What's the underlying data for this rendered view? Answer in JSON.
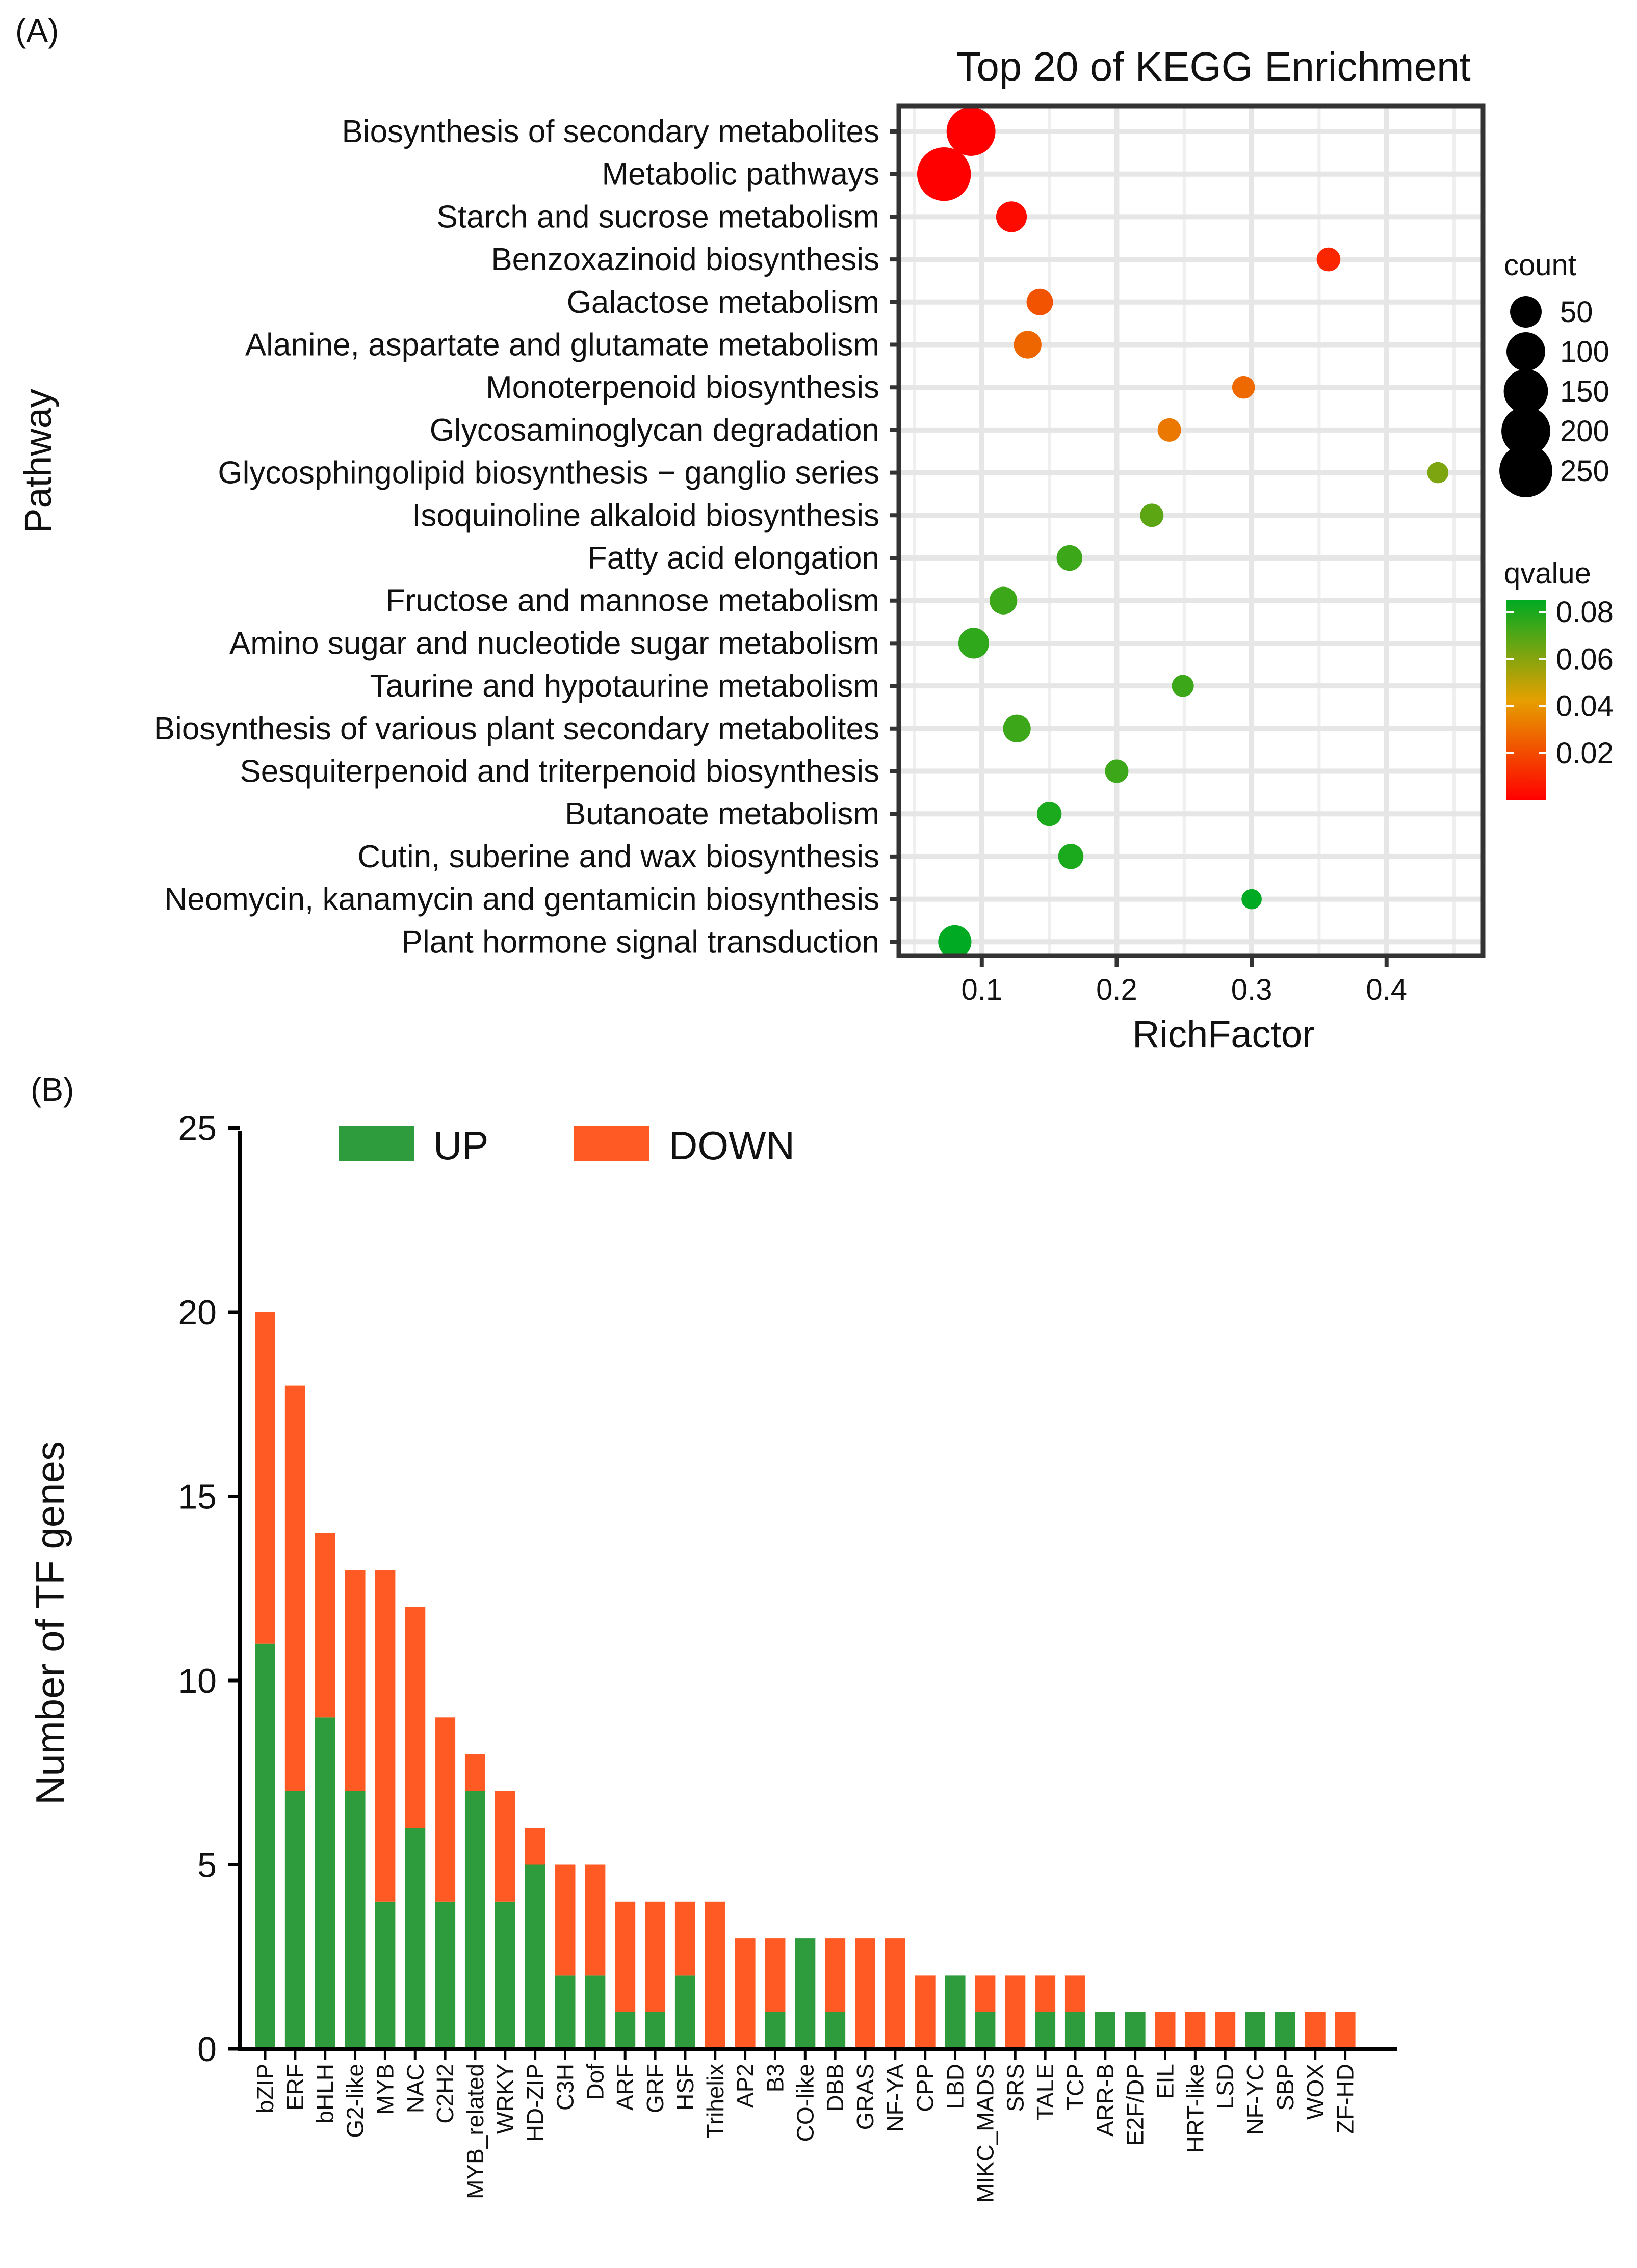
{
  "panel_labels": {
    "a": "(A)",
    "b": "(B)"
  },
  "chart_data": [
    {
      "type": "scatter",
      "title": "Top 20 of KEGG Enrichment",
      "xlabel": "RichFactor",
      "ylabel": "Pathway",
      "xlim": [
        0.04,
        0.47
      ],
      "xticks": [
        0.1,
        0.2,
        0.3,
        0.4
      ],
      "xtick_labels": [
        "0.1",
        "0.2",
        "0.3",
        "0.4"
      ],
      "grid": true,
      "size_legend": {
        "title": "count",
        "values": [
          50,
          100,
          150,
          200,
          250
        ],
        "labels": [
          "50",
          "100",
          "150",
          "200",
          "250"
        ]
      },
      "color_legend": {
        "title": "qvalue",
        "min": 0,
        "max": 0.085,
        "ticks": [
          0.02,
          0.04,
          0.06,
          0.08
        ],
        "tick_labels": [
          "0.02",
          "0.04",
          "0.06",
          "0.08"
        ],
        "low_color": "#ff0000",
        "mid_color": "#e5a000",
        "high_color": "#00aa22"
      },
      "points": [
        {
          "pathway": "Biosynthesis of secondary metabolites",
          "rich_factor": 0.092,
          "count": 200,
          "qvalue": 0.0
        },
        {
          "pathway": "Metabolic pathways",
          "rich_factor": 0.072,
          "count": 260,
          "qvalue": 0.0
        },
        {
          "pathway": "Starch and sucrose metabolism",
          "rich_factor": 0.122,
          "count": 45,
          "qvalue": 0.003
        },
        {
          "pathway": "Benzoxazinoid biosynthesis",
          "rich_factor": 0.357,
          "count": 15,
          "qvalue": 0.01
        },
        {
          "pathway": "Galactose metabolism",
          "rich_factor": 0.143,
          "count": 25,
          "qvalue": 0.022
        },
        {
          "pathway": "Alanine, aspartate and glutamate metabolism",
          "rich_factor": 0.134,
          "count": 30,
          "qvalue": 0.027
        },
        {
          "pathway": "Monoterpenoid biosynthesis",
          "rich_factor": 0.294,
          "count": 12,
          "qvalue": 0.028
        },
        {
          "pathway": "Glycosaminoglycan degradation",
          "rich_factor": 0.239,
          "count": 14,
          "qvalue": 0.032
        },
        {
          "pathway": "Glycosphingolipid biosynthesis − ganglio series",
          "rich_factor": 0.438,
          "count": 8,
          "qvalue": 0.062
        },
        {
          "pathway": "Isoquinoline alkaloid biosynthesis",
          "rich_factor": 0.226,
          "count": 14,
          "qvalue": 0.068
        },
        {
          "pathway": "Fatty acid elongation",
          "rich_factor": 0.165,
          "count": 22,
          "qvalue": 0.074
        },
        {
          "pathway": "Fructose and mannose metabolism",
          "rich_factor": 0.116,
          "count": 30,
          "qvalue": 0.074
        },
        {
          "pathway": "Amino sugar and nucleotide sugar metabolism",
          "rich_factor": 0.094,
          "count": 45,
          "qvalue": 0.076
        },
        {
          "pathway": "Taurine and hypotaurine metabolism",
          "rich_factor": 0.249,
          "count": 10,
          "qvalue": 0.074
        },
        {
          "pathway": "Biosynthesis of various plant secondary metabolites",
          "rich_factor": 0.126,
          "count": 30,
          "qvalue": 0.074
        },
        {
          "pathway": "Sesquiterpenoid and triterpenoid biosynthesis",
          "rich_factor": 0.2,
          "count": 14,
          "qvalue": 0.074
        },
        {
          "pathway": "Butanoate metabolism",
          "rich_factor": 0.15,
          "count": 18,
          "qvalue": 0.08
        },
        {
          "pathway": "Cutin, suberine and wax biosynthesis",
          "rich_factor": 0.166,
          "count": 20,
          "qvalue": 0.08
        },
        {
          "pathway": "Neomycin, kanamycin and gentamicin biosynthesis",
          "rich_factor": 0.3,
          "count": 6,
          "qvalue": 0.085
        },
        {
          "pathway": "Plant hormone signal transduction",
          "rich_factor": 0.08,
          "count": 60,
          "qvalue": 0.085
        }
      ]
    },
    {
      "type": "bar",
      "stacked": true,
      "ylabel": "Number of TF genes",
      "ylim": [
        0,
        25
      ],
      "yticks": [
        0,
        5,
        10,
        15,
        20,
        25
      ],
      "ytick_labels": [
        "0",
        "5",
        "10",
        "15",
        "20",
        "25"
      ],
      "legend_position": "top",
      "categories": [
        "bZIP",
        "ERF",
        "bHLH",
        "G2-like",
        "MYB",
        "NAC",
        "C2H2",
        "MYB_related",
        "WRKY",
        "HD-ZIP",
        "C3H",
        "Dof",
        "ARF",
        "GRF",
        "HSF",
        "Trihelix",
        "AP2",
        "B3",
        "CO-like",
        "DBB",
        "GRAS",
        "NF-YA",
        "CPP",
        "LBD",
        "MIKC_MADS",
        "SRS",
        "TALE",
        "TCP",
        "ARR-B",
        "E2F/DP",
        "EIL",
        "HRT-like",
        "LSD",
        "NF-YC",
        "SBP",
        "WOX",
        "ZF-HD"
      ],
      "series": [
        {
          "name": "UP",
          "color": "#2e9b3d",
          "values": [
            11,
            7,
            9,
            7,
            4,
            6,
            4,
            7,
            4,
            5,
            2,
            2,
            1,
            1,
            2,
            0,
            0,
            1,
            3,
            1,
            0,
            0,
            0,
            2,
            1,
            0,
            1,
            1,
            1,
            1,
            0,
            0,
            0,
            1,
            1,
            0,
            0
          ]
        },
        {
          "name": "DOWN",
          "color": "#ff5a24",
          "values": [
            9,
            11,
            5,
            6,
            9,
            6,
            5,
            1,
            3,
            1,
            3,
            3,
            3,
            3,
            2,
            4,
            3,
            2,
            0,
            2,
            3,
            3,
            2,
            0,
            1,
            2,
            1,
            1,
            0,
            0,
            1,
            1,
            1,
            0,
            0,
            1,
            1
          ]
        }
      ]
    }
  ]
}
